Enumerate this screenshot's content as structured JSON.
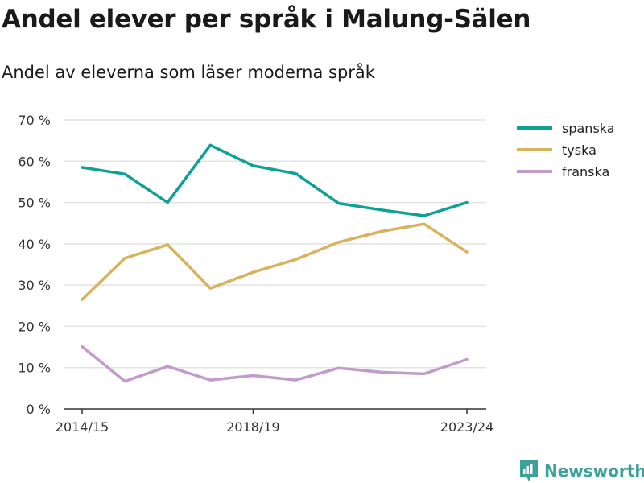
{
  "header": {
    "title": "Andel elever per språk i Malung-Sälen",
    "subtitle": "Andel av eleverna som läser moderna språk"
  },
  "brand": {
    "name": "Newsworthy",
    "icon": "newsworthy-logo-icon",
    "color": "#3aa29a"
  },
  "chart_data": {
    "type": "line",
    "title": "Andel elever per språk i Malung-Sälen",
    "subtitle": "Andel av eleverna som läser moderna språk",
    "x": [
      0,
      1,
      2,
      3,
      4,
      5,
      6,
      7,
      8,
      9
    ],
    "x_tick_labels": [
      {
        "x": 0,
        "label": "2014/15"
      },
      {
        "x": 4,
        "label": "2018/19"
      },
      {
        "x": 9,
        "label": "2023/24"
      }
    ],
    "ylim": [
      0,
      70
    ],
    "y_ticks": [
      0,
      10,
      20,
      30,
      40,
      50,
      60,
      70
    ],
    "y_tick_labels": [
      "0 %",
      "10 %",
      "20 %",
      "30 %",
      "40 %",
      "50 %",
      "60 %",
      "70 %"
    ],
    "grid": "horizontal",
    "legend_position": "top-right",
    "series": [
      {
        "name": "spanska",
        "color": "#0fa197",
        "values": [
          58.5,
          56.9,
          50.0,
          63.9,
          58.9,
          57.0,
          49.8,
          48.2,
          46.8,
          50.0
        ]
      },
      {
        "name": "tyska",
        "color": "#d9b25d",
        "values": [
          26.5,
          36.5,
          39.8,
          29.2,
          33.1,
          36.2,
          40.4,
          43.0,
          44.8,
          38.0
        ]
      },
      {
        "name": "franska",
        "color": "#c29bcc",
        "values": [
          15.1,
          6.7,
          10.3,
          7.0,
          8.1,
          7.0,
          9.9,
          8.9,
          8.5,
          12.0
        ]
      }
    ]
  }
}
